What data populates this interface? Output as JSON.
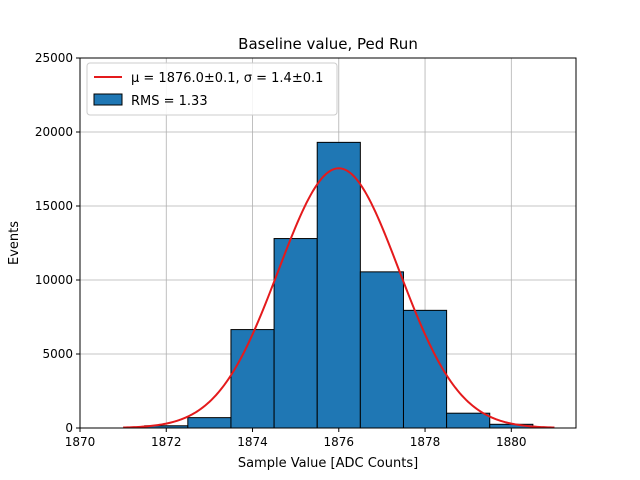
{
  "chart_data": {
    "type": "bar",
    "title": "Baseline value, Ped Run",
    "xlabel": "Sample Value [ADC Counts]",
    "ylabel": "Events",
    "xlim": [
      1870,
      1881.5
    ],
    "ylim": [
      0,
      25000
    ],
    "xticks": [
      1870,
      1872,
      1874,
      1876,
      1878,
      1880
    ],
    "yticks": [
      0,
      5000,
      10000,
      15000,
      20000,
      25000
    ],
    "grid": true,
    "legend_position": "top-left",
    "histogram": {
      "name": "RMS = 1.33",
      "bins": [
        {
          "x0": 1871.5,
          "x1": 1872.5,
          "count": 150
        },
        {
          "x0": 1872.5,
          "x1": 1873.5,
          "count": 700
        },
        {
          "x0": 1873.5,
          "x1": 1874.5,
          "count": 6650
        },
        {
          "x0": 1874.5,
          "x1": 1875.5,
          "count": 12800
        },
        {
          "x0": 1875.5,
          "x1": 1876.5,
          "count": 19300
        },
        {
          "x0": 1876.5,
          "x1": 1877.5,
          "count": 10550
        },
        {
          "x0": 1877.5,
          "x1": 1878.5,
          "count": 7950
        },
        {
          "x0": 1878.5,
          "x1": 1879.5,
          "count": 1000
        },
        {
          "x0": 1879.5,
          "x1": 1880.5,
          "count": 250
        }
      ],
      "color": "#1f77b4",
      "edgecolor": "#000000"
    },
    "fit": {
      "name": "μ = 1876.0±0.1, σ = 1.4±0.1",
      "type": "gaussian",
      "mu": 1876.0,
      "sigma": 1.4,
      "amplitude": 17550,
      "x_range": [
        1871,
        1881
      ],
      "color": "#e41a1c"
    }
  }
}
